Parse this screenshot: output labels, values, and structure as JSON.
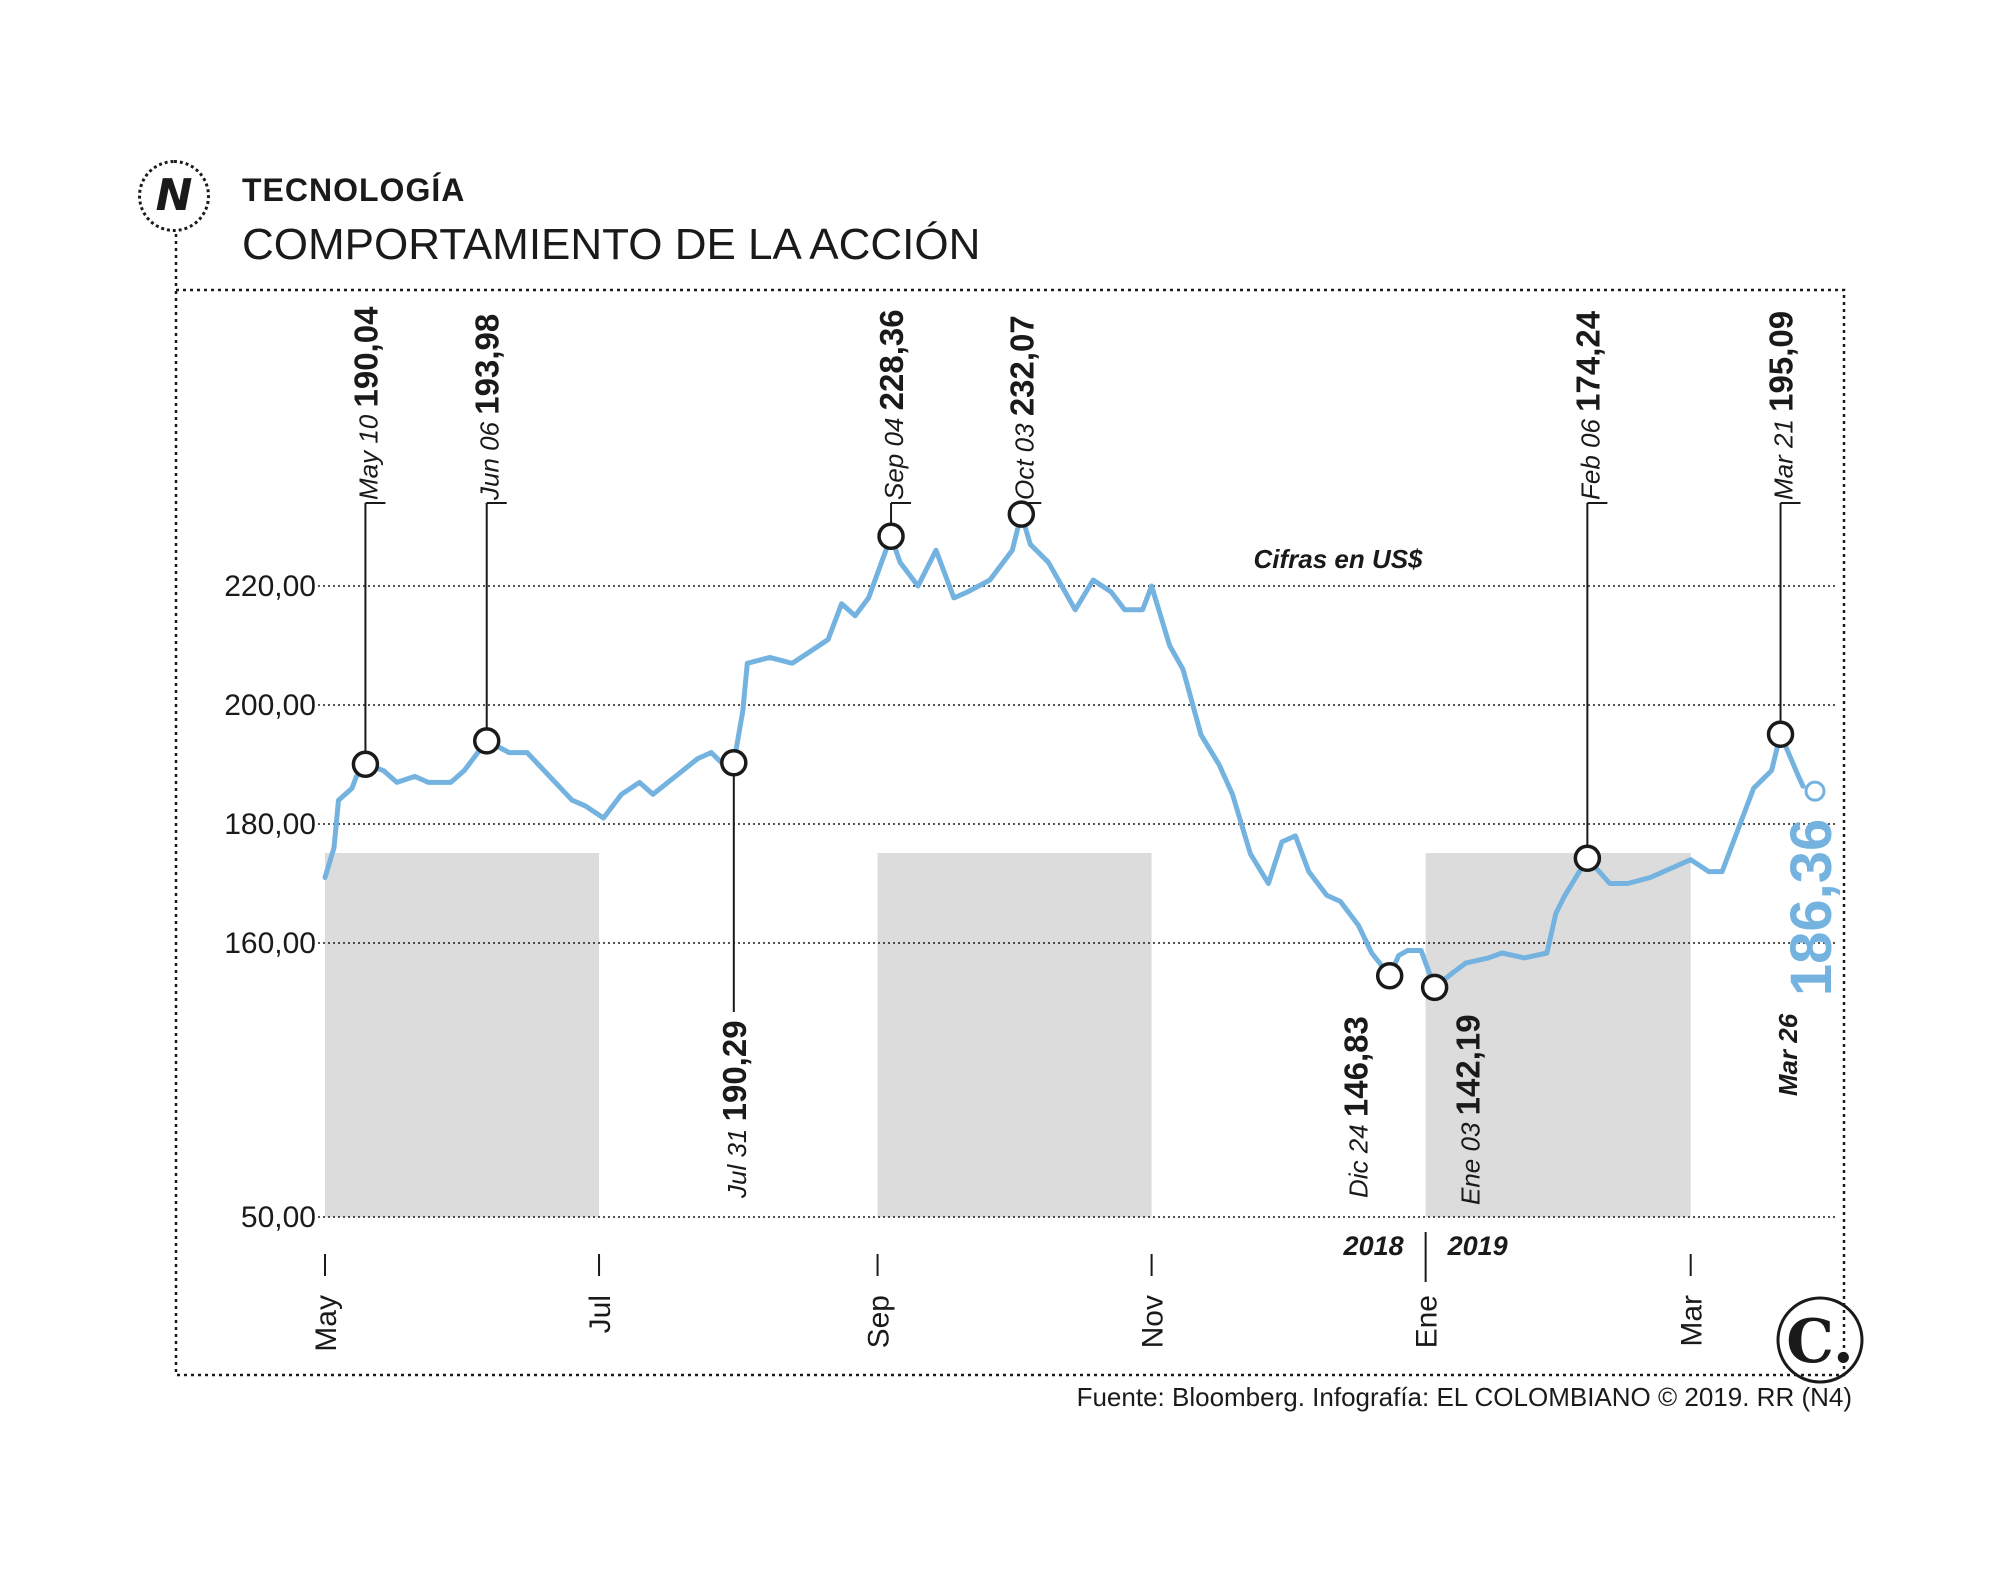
{
  "header": {
    "logo_letter": "N",
    "section": "TECNOLOGÍA",
    "title": "COMPORTAMIENTO DE LA ACCIÓN"
  },
  "footer": {
    "source": "Fuente: Bloomberg. Infografía: EL COLOMBIANO © 2019. RR (N4)"
  },
  "brand_logo": "C.",
  "colors": {
    "line": "#74b3e0",
    "shade": "#dcdcdd",
    "ink": "#1a1a1a"
  },
  "chart_data": {
    "type": "line",
    "title": "COMPORTAMIENTO DE LA ACCIÓN",
    "currency_note": "Cifras en US$",
    "y_ticks": [
      "220,00",
      "200,00",
      "180,00",
      "160,00",
      "50,00"
    ],
    "y_tick_values": [
      220,
      200,
      180,
      160,
      50
    ],
    "y_axis_break": true,
    "x_ticks": [
      "May",
      "Jul",
      "Sep",
      "Nov",
      "Ene",
      "Mar"
    ],
    "year_labels": [
      "2018",
      "2019"
    ],
    "shaded_months": [
      "May-Jun",
      "Sep-Oct",
      "Ene-Feb"
    ],
    "series": [
      {
        "values": [
          [
            "2018-05-01",
            171
          ],
          [
            "2018-05-03",
            176
          ],
          [
            "2018-05-04",
            184
          ],
          [
            "2018-05-07",
            186
          ],
          [
            "2018-05-08",
            188
          ],
          [
            "2018-05-10",
            190
          ],
          [
            "2018-05-14",
            189
          ],
          [
            "2018-05-17",
            187
          ],
          [
            "2018-05-21",
            188
          ],
          [
            "2018-05-24",
            187
          ],
          [
            "2018-05-29",
            187
          ],
          [
            "2018-06-01",
            189
          ],
          [
            "2018-06-06",
            193.98
          ],
          [
            "2018-06-11",
            192
          ],
          [
            "2018-06-15",
            192
          ],
          [
            "2018-06-20",
            188
          ],
          [
            "2018-06-25",
            184
          ],
          [
            "2018-06-28",
            183
          ],
          [
            "2018-07-02",
            181
          ],
          [
            "2018-07-06",
            185
          ],
          [
            "2018-07-10",
            187
          ],
          [
            "2018-07-13",
            185
          ],
          [
            "2018-07-18",
            188
          ],
          [
            "2018-07-23",
            191
          ],
          [
            "2018-07-26",
            192
          ],
          [
            "2018-07-30",
            189
          ],
          [
            "2018-07-31",
            190.29
          ],
          [
            "2018-08-02",
            199
          ],
          [
            "2018-08-03",
            207
          ],
          [
            "2018-08-08",
            208
          ],
          [
            "2018-08-13",
            207
          ],
          [
            "2018-08-17",
            209
          ],
          [
            "2018-08-21",
            211
          ],
          [
            "2018-08-24",
            217
          ],
          [
            "2018-08-27",
            215
          ],
          [
            "2018-08-30",
            218
          ],
          [
            "2018-09-04",
            228.36
          ],
          [
            "2018-09-06",
            224
          ],
          [
            "2018-09-10",
            220
          ],
          [
            "2018-09-14",
            226
          ],
          [
            "2018-09-18",
            218
          ],
          [
            "2018-09-21",
            219
          ],
          [
            "2018-09-26",
            221
          ],
          [
            "2018-10-01",
            226
          ],
          [
            "2018-10-03",
            232.07
          ],
          [
            "2018-10-05",
            227
          ],
          [
            "2018-10-09",
            224
          ],
          [
            "2018-10-12",
            220
          ],
          [
            "2018-10-15",
            216
          ],
          [
            "2018-10-19",
            221
          ],
          [
            "2018-10-23",
            219
          ],
          [
            "2018-10-26",
            216
          ],
          [
            "2018-10-30",
            216
          ],
          [
            "2018-11-01",
            220
          ],
          [
            "2018-11-05",
            210
          ],
          [
            "2018-11-08",
            206
          ],
          [
            "2018-11-12",
            195
          ],
          [
            "2018-11-16",
            190
          ],
          [
            "2018-11-19",
            185
          ],
          [
            "2018-11-23",
            175
          ],
          [
            "2018-11-27",
            170
          ],
          [
            "2018-11-30",
            177
          ],
          [
            "2018-12-03",
            178
          ],
          [
            "2018-12-06",
            172
          ],
          [
            "2018-12-10",
            168
          ],
          [
            "2018-12-13",
            167
          ],
          [
            "2018-12-17",
            163
          ],
          [
            "2018-12-20",
            156
          ],
          [
            "2018-12-24",
            146.83
          ],
          [
            "2018-12-26",
            155
          ],
          [
            "2018-12-28",
            157
          ],
          [
            "2018-12-31",
            157
          ],
          [
            "2019-01-03",
            142.19
          ],
          [
            "2019-01-07",
            148
          ],
          [
            "2019-01-10",
            152
          ],
          [
            "2019-01-15",
            154
          ],
          [
            "2019-01-18",
            156
          ],
          [
            "2019-01-23",
            154
          ],
          [
            "2019-01-28",
            156
          ],
          [
            "2019-01-30",
            165
          ],
          [
            "2019-02-01",
            168
          ],
          [
            "2019-02-06",
            174.24
          ],
          [
            "2019-02-11",
            170
          ],
          [
            "2019-02-15",
            170
          ],
          [
            "2019-02-20",
            171
          ],
          [
            "2019-02-26",
            173
          ],
          [
            "2019-03-01",
            174
          ],
          [
            "2019-03-05",
            172
          ],
          [
            "2019-03-08",
            172
          ],
          [
            "2019-03-11",
            178
          ],
          [
            "2019-03-15",
            186
          ],
          [
            "2019-03-19",
            189
          ],
          [
            "2019-03-21",
            195.09
          ],
          [
            "2019-03-25",
            188
          ],
          [
            "2019-03-26",
            186.36
          ]
        ]
      }
    ],
    "annotations": [
      {
        "date_label": "May 10",
        "value_label": "190,04",
        "x": "2018-05-10",
        "y": 190.04,
        "pos": "above"
      },
      {
        "date_label": "Jun 06",
        "value_label": "193,98",
        "x": "2018-06-06",
        "y": 193.98,
        "pos": "above"
      },
      {
        "date_label": "Jul 31",
        "value_label": "190,29",
        "x": "2018-07-31",
        "y": 190.29,
        "pos": "below"
      },
      {
        "date_label": "Sep 04",
        "value_label": "228,36",
        "x": "2018-09-04",
        "y": 228.36,
        "pos": "above"
      },
      {
        "date_label": "Oct 03",
        "value_label": "232,07",
        "x": "2018-10-03",
        "y": 232.07,
        "pos": "above"
      },
      {
        "date_label": "Dic 24",
        "value_label": "146,83",
        "x": "2018-12-24",
        "y": 146.83,
        "pos": "left"
      },
      {
        "date_label": "Ene 03",
        "value_label": "142,19",
        "x": "2019-01-03",
        "y": 142.19,
        "pos": "right"
      },
      {
        "date_label": "Feb 06",
        "value_label": "174,24",
        "x": "2019-02-06",
        "y": 174.24,
        "pos": "above"
      },
      {
        "date_label": "Mar 21",
        "value_label": "195,09",
        "x": "2019-03-21",
        "y": 195.09,
        "pos": "above"
      }
    ],
    "last_point": {
      "date_label": "Mar 26",
      "value_label": "186,36",
      "x": "2019-03-26",
      "y": 186.36
    }
  }
}
